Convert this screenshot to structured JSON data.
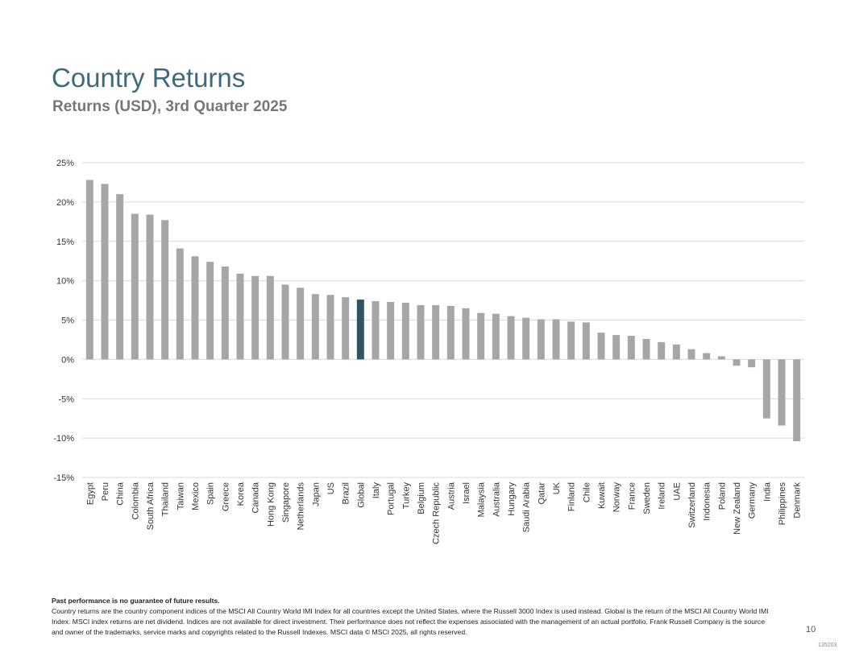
{
  "header": {
    "title": "Country Returns",
    "subtitle": "Returns (USD), 3rd Quarter 2025"
  },
  "footer": {
    "disclaimer_bold": "Past performance is no guarantee of future results.",
    "disclaimer_text": "Country returns are the country component indices of the MSCI All Country World IMI Index for all countries except the United States, where the Russell 3000 Index is used instead. Global is the return of the MSCI All Country World IMI Index. MSCI index returns are net dividend. Indices are not available for direct investment. Their performance does not reflect the expenses associated with the management of an actual portfolio. Frank Russell Company is the source and owner of the trademarks, service marks and copyrights related to the Russell Indexes. MSCI data © MSCI 2025, all rights reserved.",
    "page_number": "10",
    "code": "135203"
  },
  "colors": {
    "bar": "#a6a6a6",
    "highlight": "#2e5466",
    "grid": "#d9d9d9",
    "axis_text": "#333333"
  },
  "chart_data": {
    "type": "bar",
    "title": "Returns (USD), 3rd Quarter 2025",
    "xlabel": "",
    "ylabel": "",
    "ylim": [
      -15,
      25
    ],
    "yticks": [
      25,
      20,
      15,
      10,
      5,
      0,
      -5,
      -10,
      -15
    ],
    "ytick_labels": [
      "25%",
      "20%",
      "15%",
      "10%",
      "5%",
      "0%",
      "-5%",
      "-10%",
      "-15%"
    ],
    "grid": true,
    "highlight_category": "Global",
    "categories": [
      "Egypt",
      "Peru",
      "China",
      "Colombia",
      "South Africa",
      "Thailand",
      "Taiwan",
      "Mexico",
      "Spain",
      "Greece",
      "Korea",
      "Canada",
      "Hong Kong",
      "Singapore",
      "Netherlands",
      "Japan",
      "US",
      "Brazil",
      "Global",
      "Italy",
      "Portugal",
      "Turkey",
      "Belgium",
      "Czech Republic",
      "Austria",
      "Israel",
      "Malaysia",
      "Australia",
      "Hungary",
      "Saudi Arabia",
      "Qatar",
      "UK",
      "Finland",
      "Chile",
      "Kuwait",
      "Norway",
      "France",
      "Sweden",
      "Ireland",
      "UAE",
      "Switzerland",
      "Indonesia",
      "Poland",
      "New Zealand",
      "Germany",
      "India",
      "Philippines",
      "Denmark"
    ],
    "values": [
      22.8,
      22.3,
      21.0,
      18.5,
      18.4,
      17.7,
      14.1,
      13.1,
      12.4,
      11.8,
      10.9,
      10.6,
      10.6,
      9.5,
      9.1,
      8.3,
      8.2,
      7.9,
      7.6,
      7.4,
      7.3,
      7.2,
      6.9,
      6.9,
      6.8,
      6.5,
      5.9,
      5.8,
      5.5,
      5.3,
      5.1,
      5.1,
      4.8,
      4.7,
      3.4,
      3.1,
      3.0,
      2.6,
      2.2,
      1.9,
      1.3,
      0.8,
      0.4,
      -0.8,
      -1.0,
      -7.5,
      -8.4,
      -10.4
    ]
  }
}
